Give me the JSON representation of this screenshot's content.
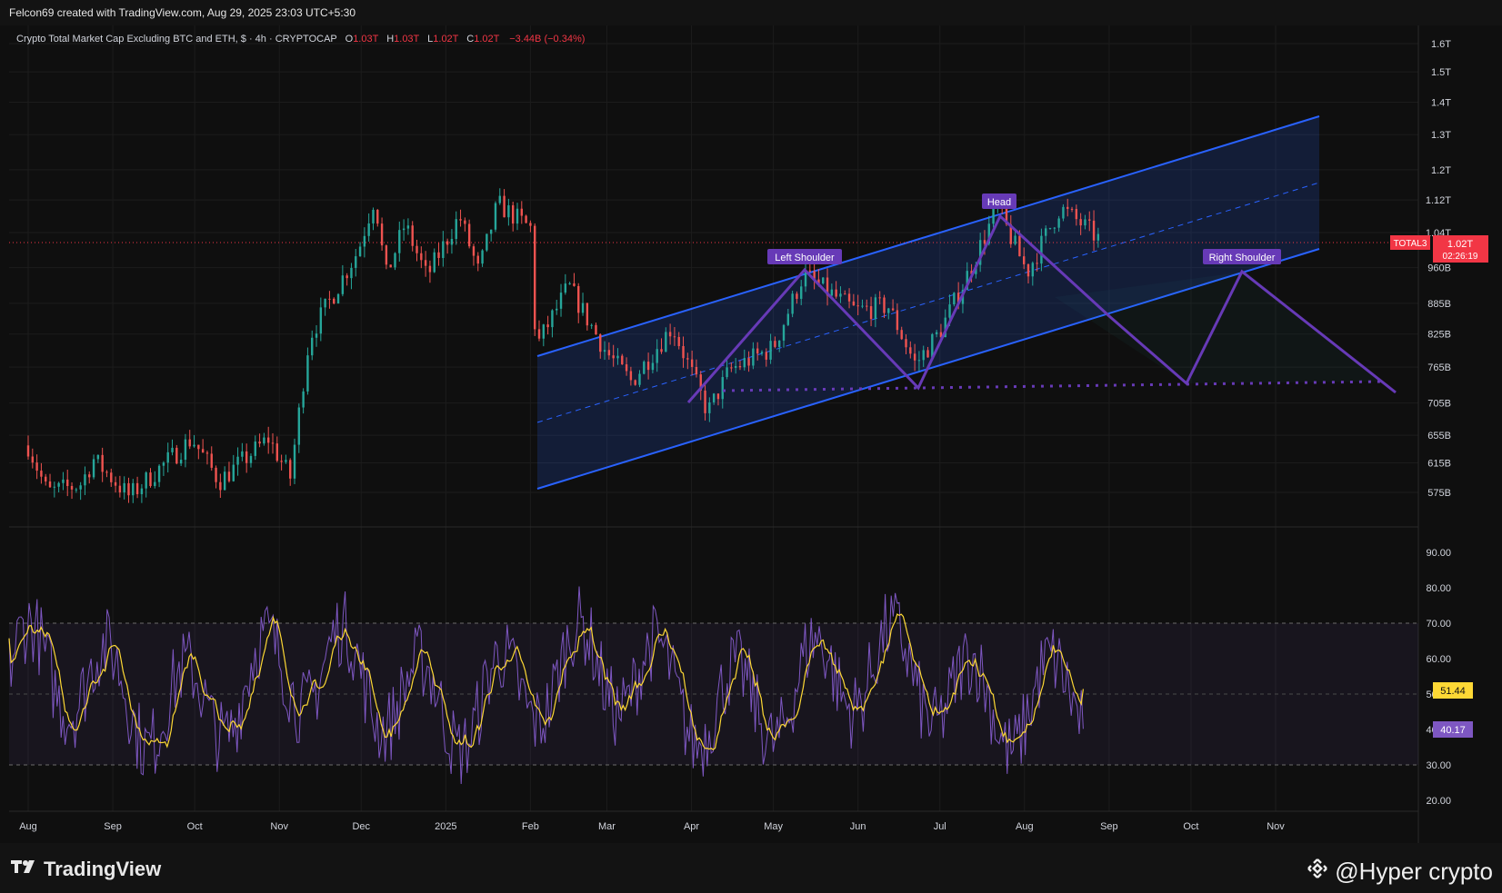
{
  "header": {
    "credit": "Felcon69 created with TradingView.com, Aug 29, 2025 23:03 UTC+5:30",
    "symbol_desc": "Crypto Total Market Cap Excluding BTC and ETH, $ · 4h · CRYPTOCAP",
    "ohlc": {
      "o_label": "O",
      "o": "1.03T",
      "h_label": "H",
      "h": "1.03T",
      "l_label": "L",
      "l": "1.02T",
      "c_label": "C",
      "c": "1.02T",
      "change": "−3.44B (−0.34%)"
    }
  },
  "price_axis": {
    "ticks": [
      "1.6T",
      "1.5T",
      "1.4T",
      "1.3T",
      "1.2T",
      "1.12T",
      "1.04T",
      "960B",
      "885B",
      "825B",
      "765B",
      "705B",
      "655B",
      "615B",
      "575B"
    ],
    "ticker": "TOTAL3",
    "last_price": "1.02T",
    "countdown": "02:26:19"
  },
  "rsi_axis": {
    "ticks": [
      "90.00",
      "80.00",
      "70.00",
      "60.00",
      "50.00",
      "40.00",
      "30.00",
      "20.00"
    ],
    "rsi_value": "40.17",
    "ma_value": "51.44"
  },
  "time_axis": {
    "labels": [
      "Aug",
      "Sep",
      "Oct",
      "Nov",
      "Dec",
      "2025",
      "Feb",
      "Mar",
      "Apr",
      "May",
      "Jun",
      "Jul",
      "Aug",
      "Sep",
      "Oct",
      "Nov"
    ]
  },
  "annotations": {
    "left_shoulder": "Left Shoulder",
    "head": "Head",
    "right_shoulder": "Right Shoulder"
  },
  "footer": {
    "brand": "TradingView",
    "watermark": "@Hyper crypto"
  },
  "colors": {
    "up": "#26a69a",
    "down": "#ef5350",
    "channel": "#2962ff",
    "pattern": "#673ab7",
    "rsi": "#7e57c2",
    "rsi_ma": "#fdd835",
    "price_label": "#f23645"
  },
  "chart_data": {
    "type": "candlestick",
    "title": "Crypto Total Market Cap Excluding BTC and ETH",
    "symbol": "TOTAL3",
    "timeframe": "4h",
    "x_range": [
      "2024-08",
      "2025-11"
    ],
    "y_scale": "log",
    "price_path_approx": [
      {
        "date": "2024-08-01",
        "value": 640
      },
      {
        "date": "2024-08-08",
        "value": 575
      },
      {
        "date": "2024-08-20",
        "value": 585
      },
      {
        "date": "2024-08-25",
        "value": 620
      },
      {
        "date": "2024-09-07",
        "value": 570
      },
      {
        "date": "2024-09-30",
        "value": 650
      },
      {
        "date": "2024-10-10",
        "value": 590
      },
      {
        "date": "2024-10-28",
        "value": 650
      },
      {
        "date": "2024-11-05",
        "value": 595
      },
      {
        "date": "2024-11-12",
        "value": 820
      },
      {
        "date": "2024-11-30",
        "value": 1000
      },
      {
        "date": "2024-12-06",
        "value": 1130
      },
      {
        "date": "2024-12-10",
        "value": 940
      },
      {
        "date": "2024-12-17",
        "value": 1060
      },
      {
        "date": "2024-12-25",
        "value": 940
      },
      {
        "date": "2025-01-06",
        "value": 1080
      },
      {
        "date": "2025-01-13",
        "value": 950
      },
      {
        "date": "2025-01-20",
        "value": 1110
      },
      {
        "date": "2025-02-01",
        "value": 1050
      },
      {
        "date": "2025-02-03",
        "value": 800
      },
      {
        "date": "2025-02-15",
        "value": 920
      },
      {
        "date": "2025-03-01",
        "value": 790
      },
      {
        "date": "2025-03-10",
        "value": 740
      },
      {
        "date": "2025-03-25",
        "value": 840
      },
      {
        "date": "2025-04-07",
        "value": 690
      },
      {
        "date": "2025-04-15",
        "value": 760
      },
      {
        "date": "2025-05-01",
        "value": 800
      },
      {
        "date": "2025-05-12",
        "value": 945
      },
      {
        "date": "2025-05-31",
        "value": 870
      },
      {
        "date": "2025-06-12",
        "value": 880
      },
      {
        "date": "2025-06-22",
        "value": 770
      },
      {
        "date": "2025-07-01",
        "value": 830
      },
      {
        "date": "2025-07-10",
        "value": 930
      },
      {
        "date": "2025-07-22",
        "value": 1100
      },
      {
        "date": "2025-08-02",
        "value": 950
      },
      {
        "date": "2025-08-14",
        "value": 1100
      },
      {
        "date": "2025-08-22",
        "value": 1060
      },
      {
        "date": "2025-08-29",
        "value": 1020
      }
    ],
    "last": 1020,
    "indicator": {
      "name": "RSI",
      "ylim": [
        15,
        95
      ],
      "bands": [
        30,
        50,
        70
      ],
      "last_rsi": 40.17,
      "last_ma": 51.44
    }
  }
}
